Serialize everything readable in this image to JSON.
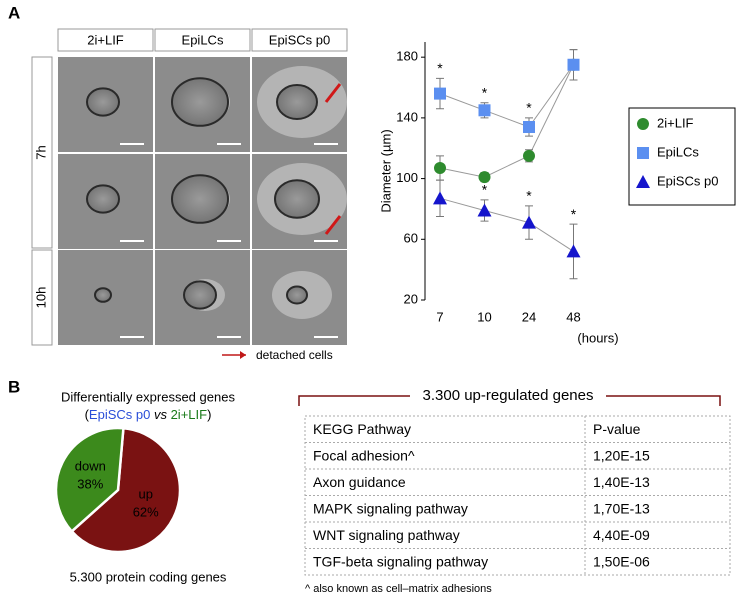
{
  "panels": {
    "a": "A",
    "b": "B"
  },
  "micrographs": {
    "columns": [
      "2i+LIF",
      "EpiLCs",
      "EpiSCs p0"
    ],
    "column_colors": [
      "#1a7a1a",
      "#3a6ee8",
      "#1010cc"
    ],
    "rows": [
      "7h",
      "10h"
    ],
    "legend": "detached cells"
  },
  "line_chart": {
    "type": "line",
    "ylabel": "Diameter (µm)",
    "xlabel": "(hours)",
    "categories": [
      "7",
      "10",
      "24",
      "48"
    ],
    "ylim": [
      20,
      190
    ],
    "yticks": [
      20,
      60,
      100,
      140,
      180
    ],
    "series": [
      {
        "name": "2i+LIF",
        "color": "#2e8b2e",
        "marker": "circle",
        "values": [
          107,
          101,
          115,
          175
        ],
        "errors": [
          8,
          3,
          4,
          10
        ],
        "significance": [
          null,
          null,
          null,
          null
        ]
      },
      {
        "name": "EpiLCs",
        "color": "#5b8ff0",
        "marker": "square",
        "values": [
          156,
          145,
          134,
          175
        ],
        "errors": [
          10,
          5,
          6,
          10
        ],
        "significance": [
          "*",
          "*",
          "*",
          null
        ]
      },
      {
        "name": "EpiSCs p0",
        "color": "#1515cc",
        "marker": "triangle",
        "values": [
          87,
          79,
          71,
          52
        ],
        "errors": [
          12,
          7,
          11,
          18
        ],
        "significance": [
          null,
          "*",
          "*",
          "*"
        ]
      }
    ],
    "legend_label_colors": [
      "#1a7a1a",
      "#3a6ee8",
      "#1010cc"
    ]
  },
  "pie_chart": {
    "type": "pie",
    "title": "Differentially expressed genes",
    "subtitle_parts": [
      "(",
      "EpiSCs p0",
      " vs ",
      "2i+LIF",
      ")"
    ],
    "subtitle_colors": [
      "#000",
      "#2a4ed8",
      "#000",
      "#1a7a1a",
      "#000"
    ],
    "categories": [
      "up",
      "down"
    ],
    "values": [
      62,
      38
    ],
    "value_labels": [
      "62%",
      "38%"
    ],
    "colors": [
      "#7a1212",
      "#3c8a1c"
    ],
    "footnote": "5.300 protein coding genes"
  },
  "table": {
    "title": "3.300 up-regulated genes",
    "columns": [
      "KEGG Pathway",
      "P-value"
    ],
    "rows": [
      [
        "Focal adhesion^",
        "1,20E-15"
      ],
      [
        "Axon guidance",
        "1,40E-13"
      ],
      [
        "MAPK signaling pathway",
        "1,70E-13"
      ],
      [
        "WNT signaling pathway",
        "4,40E-09"
      ],
      [
        "TGF-beta signaling pathway",
        "1,50E-06"
      ]
    ],
    "footnote": "^ also known as cell–matrix adhesions"
  }
}
